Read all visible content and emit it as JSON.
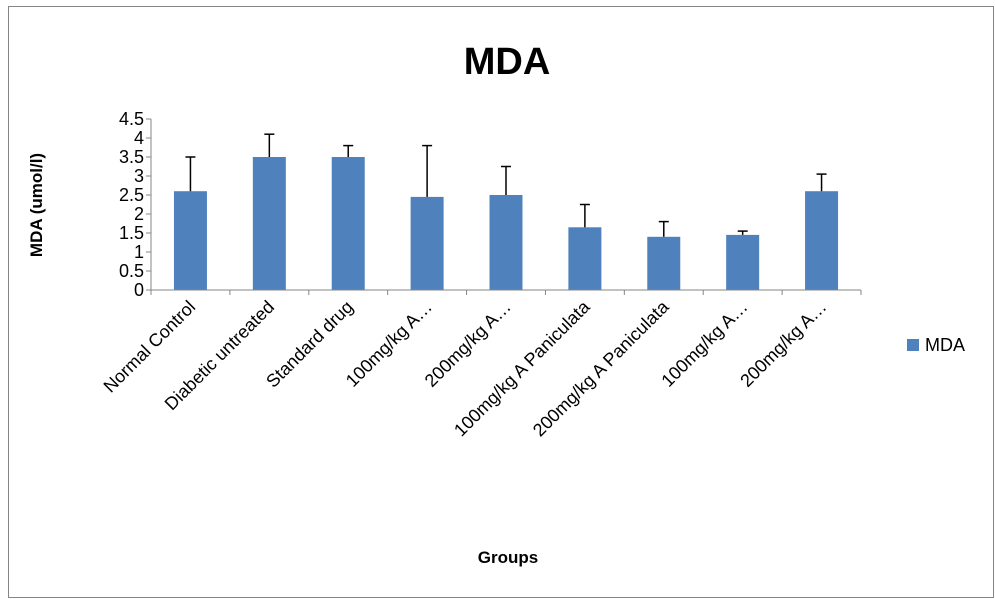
{
  "chart_data": {
    "type": "bar",
    "title": "MDA",
    "xlabel": "Groups",
    "ylabel": "MDA (umol/l)",
    "categories": [
      "Normal Control",
      "Diabetic untreated",
      "Standard drug",
      "100mg/kg A…",
      "200mg/kg A…",
      "100mg/kg A Paniculata",
      "200mg/kg A Paniculata",
      "100mg/kg A…",
      "200mg/kg A…"
    ],
    "series": [
      {
        "name": "MDA",
        "values": [
          2.6,
          3.5,
          3.5,
          2.45,
          2.5,
          1.65,
          1.4,
          1.45,
          2.6
        ],
        "errors": [
          0.9,
          0.6,
          0.3,
          1.35,
          0.75,
          0.6,
          0.4,
          0.1,
          0.45
        ],
        "color": "#4F81BD"
      }
    ],
    "ylim": [
      0,
      4.5
    ],
    "yticks": [
      "0",
      "0.5",
      "1",
      "1.5",
      "2",
      "2.5",
      "3",
      "3.5",
      "4",
      "4.5"
    ],
    "grid": false,
    "legend": "right"
  }
}
